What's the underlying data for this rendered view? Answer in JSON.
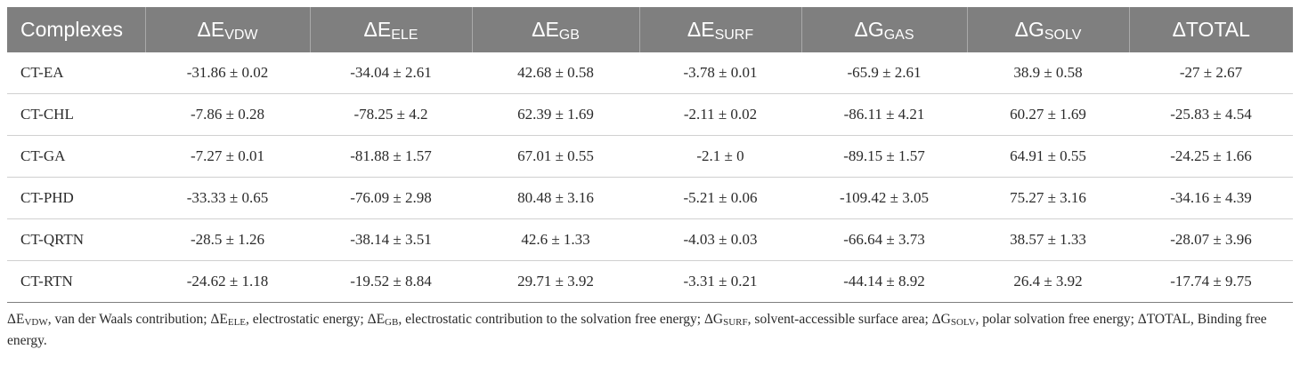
{
  "table": {
    "headers": [
      {
        "main": "Complexes",
        "sub": ""
      },
      {
        "main": "ΔE",
        "sub": "VDW"
      },
      {
        "main": "ΔE",
        "sub": "ELE"
      },
      {
        "main": "ΔE",
        "sub": "GB"
      },
      {
        "main": "ΔE",
        "sub": "SURF"
      },
      {
        "main": "ΔG",
        "sub": "GAS"
      },
      {
        "main": "ΔG",
        "sub": "SOLV"
      },
      {
        "main": "ΔTOTAL",
        "sub": ""
      }
    ],
    "rows": [
      [
        "CT-EA",
        "-31.86 ± 0.02",
        "-34.04 ± 2.61",
        "42.68 ± 0.58",
        "-3.78 ± 0.01",
        "-65.9 ± 2.61",
        "38.9 ± 0.58",
        "-27 ± 2.67"
      ],
      [
        "CT-CHL",
        "-7.86 ± 0.28",
        "-78.25 ± 4.2",
        "62.39 ± 1.69",
        "-2.11 ± 0.02",
        "-86.11 ± 4.21",
        "60.27 ± 1.69",
        "-25.83 ± 4.54"
      ],
      [
        "CT-GA",
        "-7.27 ± 0.01",
        "-81.88 ± 1.57",
        "67.01 ± 0.55",
        "-2.1 ± 0",
        "-89.15 ± 1.57",
        "64.91 ± 0.55",
        "-24.25 ± 1.66"
      ],
      [
        "CT-PHD",
        "-33.33 ± 0.65",
        "-76.09 ± 2.98",
        "80.48 ± 3.16",
        "-5.21 ± 0.06",
        "-109.42 ± 3.05",
        "75.27 ± 3.16",
        "-34.16 ± 4.39"
      ],
      [
        "CT-QRTN",
        "-28.5 ± 1.26",
        "-38.14 ± 3.51",
        "42.6 ± 1.33",
        "-4.03 ± 0.03",
        "-66.64 ± 3.73",
        "38.57 ± 1.33",
        "-28.07 ± 3.96"
      ],
      [
        "CT-RTN",
        "-24.62 ± 1.18",
        "-19.52 ± 8.84",
        "29.71 ± 3.92",
        "-3.31 ± 0.21",
        "-44.14 ± 8.92",
        "26.4 ± 3.92",
        "-17.74 ± 9.75"
      ]
    ]
  },
  "footnote": [
    {
      "main": "ΔE",
      "sub": "VDW",
      "text": ", van der Waals contribution; "
    },
    {
      "main": "ΔE",
      "sub": "ELE",
      "text": ", electrostatic energy; "
    },
    {
      "main": "ΔE",
      "sub": "GB",
      "text": ", electrostatic contribution to the solvation free energy; "
    },
    {
      "main": "ΔG",
      "sub": "SURF",
      "text": ", solvent-accessible surface area; "
    },
    {
      "main": "ΔG",
      "sub": "SOLV",
      "text": ", polar solvation free energy; "
    },
    {
      "main": "ΔTOTAL",
      "sub": "",
      "text": ", Binding free energy."
    }
  ]
}
